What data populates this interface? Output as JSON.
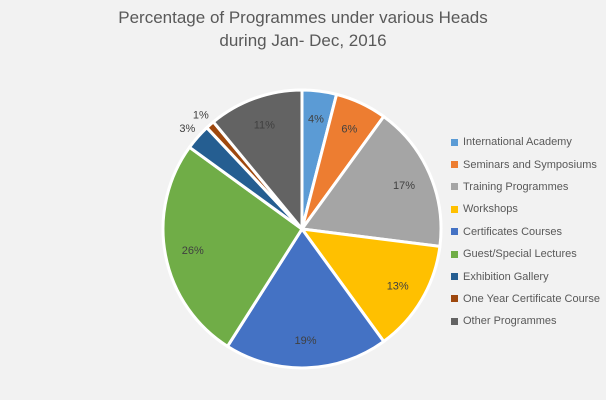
{
  "chart_data": {
    "type": "pie",
    "title_lines": [
      "Percentage of Programmes under various Heads",
      "during Jan- Dec, 2016"
    ],
    "categories": [
      "International Academy",
      "Seminars and Symposiums",
      "Training Programmes",
      "Workshops",
      "Certificates Courses",
      "Guest/Special Lectures",
      "Exhibition Gallery",
      "One Year Certificate Course",
      "Other Programmes"
    ],
    "values": [
      4,
      6,
      17,
      13,
      19,
      26,
      3,
      1,
      11
    ],
    "labels": [
      "4%",
      "6%",
      "17%",
      "13%",
      "19%",
      "26%",
      "3%",
      "1%",
      "11%"
    ],
    "colors": [
      "#5B9BD5",
      "#ED7D31",
      "#A5A5A5",
      "#FFC000",
      "#4472C4",
      "#70AD47",
      "#255E91",
      "#9E480E",
      "#636363"
    ],
    "legend_position": "right"
  }
}
